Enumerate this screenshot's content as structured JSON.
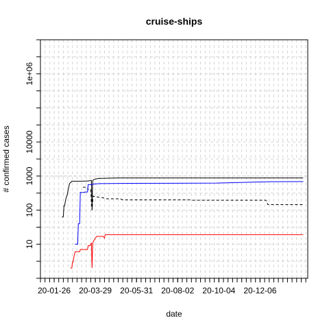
{
  "chart_data": {
    "type": "line",
    "title": "cruise-ships",
    "xlabel": "date",
    "ylabel": "# confirmed cases",
    "y_scale": "log10",
    "ylim": [
      1,
      10000000
    ],
    "xlim": [
      "2020-01-05",
      "2021-02-17"
    ],
    "grid": true,
    "legend": "none",
    "y_ticks": [
      {
        "value": 10,
        "label": "10"
      },
      {
        "value": 100,
        "label": "100"
      },
      {
        "value": 1000,
        "label": "1000"
      },
      {
        "value": 10000,
        "label": "10000"
      },
      {
        "value": 1000000,
        "label": "1e+06"
      }
    ],
    "y_minor_ticks": [
      100000,
      10000000
    ],
    "x_ticks": [
      {
        "value": "2020-01-26",
        "label": "20-01-26"
      },
      {
        "value": "2020-03-29",
        "label": "20-03-29"
      },
      {
        "value": "2020-05-31",
        "label": "20-05-31"
      },
      {
        "value": "2020-08-02",
        "label": "20-08-02"
      },
      {
        "value": "2020-10-04",
        "label": "20-10-04"
      },
      {
        "value": "2020-12-06",
        "label": "20-12-06"
      }
    ],
    "x_minor_tick_interval_days": 7,
    "reference_line": {
      "y": 1000,
      "style": "dashed",
      "color": "#c8c8c8"
    },
    "series": [
      {
        "color": "#000000",
        "style": "solid",
        "points": [
          [
            "2020-02-07",
            61
          ],
          [
            "2020-02-08",
            64
          ],
          [
            "2020-02-09",
            64
          ],
          [
            "2020-02-10",
            135
          ],
          [
            "2020-02-11",
            135
          ],
          [
            "2020-02-12",
            174
          ],
          [
            "2020-02-13",
            218
          ],
          [
            "2020-02-15",
            285
          ],
          [
            "2020-02-16",
            355
          ],
          [
            "2020-02-17",
            454
          ],
          [
            "2020-02-18",
            542
          ],
          [
            "2020-02-19",
            621
          ],
          [
            "2020-02-20",
            634
          ],
          [
            "2020-02-22",
            705
          ],
          [
            "2020-02-26",
            705
          ],
          [
            "2020-02-27",
            705
          ],
          [
            "2020-03-01",
            705
          ],
          [
            "2020-03-05",
            706
          ],
          [
            "2020-03-10",
            712
          ],
          [
            "2020-03-15",
            712
          ],
          [
            "2020-03-20",
            725
          ],
          [
            "2020-03-23",
            740
          ],
          [
            "2020-03-24",
            100
          ],
          [
            "2020-03-25",
            740
          ],
          [
            "2020-03-27",
            800
          ],
          [
            "2020-04-03",
            850
          ],
          [
            "2020-05-01",
            880
          ],
          [
            "2021-02-10",
            880
          ]
        ]
      },
      {
        "color": "#000000",
        "style": "dashed",
        "points": [
          [
            "2020-03-10",
            470
          ],
          [
            "2020-03-17",
            470
          ],
          [
            "2020-03-18",
            400
          ],
          [
            "2020-03-22",
            400
          ],
          [
            "2020-03-23",
            150
          ],
          [
            "2020-03-24",
            100
          ],
          [
            "2020-03-25",
            180
          ],
          [
            "2020-03-26",
            260
          ],
          [
            "2020-03-28",
            250
          ],
          [
            "2020-04-10",
            230
          ],
          [
            "2020-04-15",
            215
          ],
          [
            "2020-05-06",
            215
          ],
          [
            "2020-05-10",
            200
          ],
          [
            "2020-08-20",
            200
          ],
          [
            "2020-08-25",
            195
          ],
          [
            "2020-12-15",
            195
          ],
          [
            "2020-12-18",
            145
          ],
          [
            "2021-02-10",
            145
          ]
        ]
      },
      {
        "color": "#0000ff",
        "style": "solid",
        "points": [
          [
            "2020-02-27",
            10
          ],
          [
            "2020-03-02",
            10
          ],
          [
            "2020-03-03",
            40
          ],
          [
            "2020-03-05",
            40
          ],
          [
            "2020-03-06",
            330
          ],
          [
            "2020-03-12",
            330
          ],
          [
            "2020-03-13",
            340
          ],
          [
            "2020-03-17",
            340
          ],
          [
            "2020-03-18",
            560
          ],
          [
            "2020-03-24",
            560
          ],
          [
            "2020-03-25",
            580
          ],
          [
            "2020-04-05",
            600
          ],
          [
            "2020-05-20",
            610
          ],
          [
            "2020-10-01",
            620
          ],
          [
            "2020-12-18",
            680
          ],
          [
            "2021-02-10",
            690
          ]
        ]
      },
      {
        "color": "#ff0000",
        "style": "solid",
        "points": [
          [
            "2020-02-20",
            2
          ],
          [
            "2020-02-22",
            2
          ],
          [
            "2020-02-23",
            3
          ],
          [
            "2020-02-24",
            3
          ],
          [
            "2020-02-25",
            4
          ],
          [
            "2020-02-26",
            5
          ],
          [
            "2020-02-27",
            6
          ],
          [
            "2020-03-05",
            6
          ],
          [
            "2020-03-06",
            7
          ],
          [
            "2020-03-17",
            7
          ],
          [
            "2020-03-18",
            9
          ],
          [
            "2020-03-21",
            9
          ],
          [
            "2020-03-23",
            11
          ],
          [
            "2020-03-24",
            2
          ],
          [
            "2020-03-25",
            11
          ],
          [
            "2020-03-27",
            13
          ],
          [
            "2020-03-29",
            15
          ],
          [
            "2020-03-31",
            17
          ],
          [
            "2020-04-10",
            17
          ],
          [
            "2020-04-12",
            15
          ],
          [
            "2020-04-13",
            19
          ],
          [
            "2021-02-10",
            19
          ]
        ]
      },
      {
        "color": "#0000ff",
        "style": "solid",
        "points": [
          [
            "2020-02-27",
            1
          ],
          [
            "2020-03-02",
            1
          ]
        ]
      }
    ]
  }
}
